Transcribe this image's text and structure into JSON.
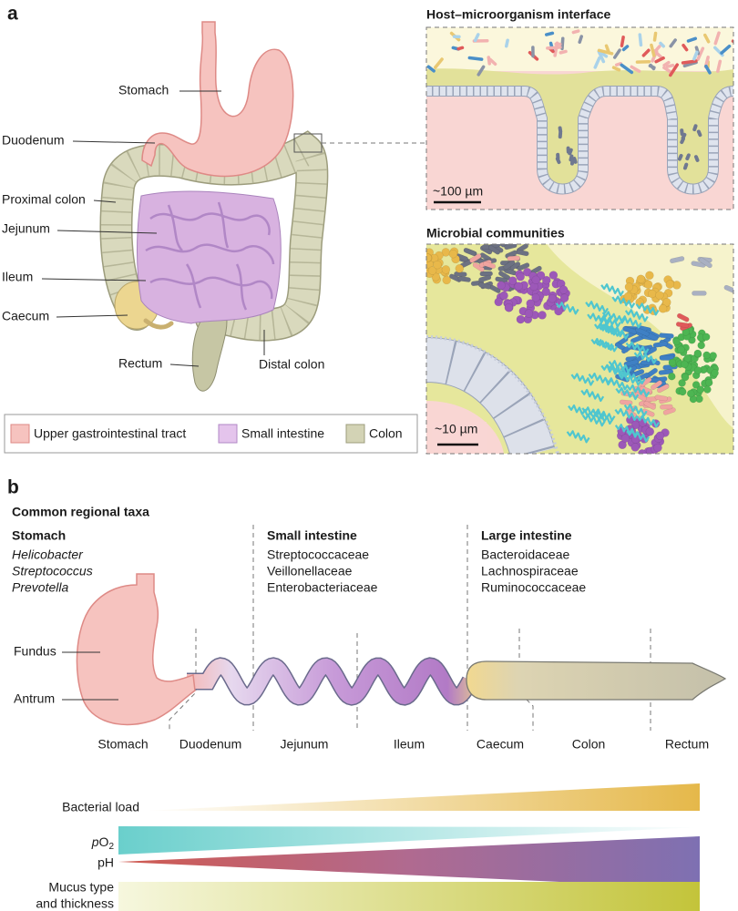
{
  "panel_a": {
    "label": "a",
    "anatomy_labels": [
      "Stomach",
      "Duodenum",
      "Proximal colon",
      "Jejunum",
      "Ileum",
      "Caecum",
      "Rectum",
      "Distal colon"
    ],
    "legend": [
      "Upper gastrointestinal tract",
      "Small intestine",
      "Colon"
    ],
    "interface": {
      "title": "Host–microorganism interface",
      "scale": "~100 µm"
    },
    "communities": {
      "title": "Microbial communities",
      "scale": "~10 µm"
    }
  },
  "panel_b": {
    "label": "b",
    "heading": "Common regional taxa",
    "regions": [
      {
        "name": "Stomach",
        "taxa": [
          "Helicobacter",
          "Streptococcus",
          "Prevotella"
        ]
      },
      {
        "name": "Small intestine",
        "taxa": [
          "Streptococcaceae",
          "Veillonellaceae",
          "Enterobacteriaceae"
        ]
      },
      {
        "name": "Large intestine",
        "taxa": [
          "Bacteroidaceae",
          "Lachnospiraceae",
          "Ruminococcaceae"
        ]
      }
    ],
    "stomach_parts": [
      "Fundus",
      "Antrum"
    ],
    "segments": [
      "Stomach",
      "Duodenum",
      "Jejunum",
      "Ileum",
      "Caecum",
      "Colon",
      "Rectum"
    ],
    "gradients": {
      "bacterial_load": "Bacterial load",
      "po2": [
        "p",
        "O",
        "2"
      ],
      "ph": "pH",
      "mucus": [
        "Mucus type",
        "and thickness"
      ]
    }
  }
}
